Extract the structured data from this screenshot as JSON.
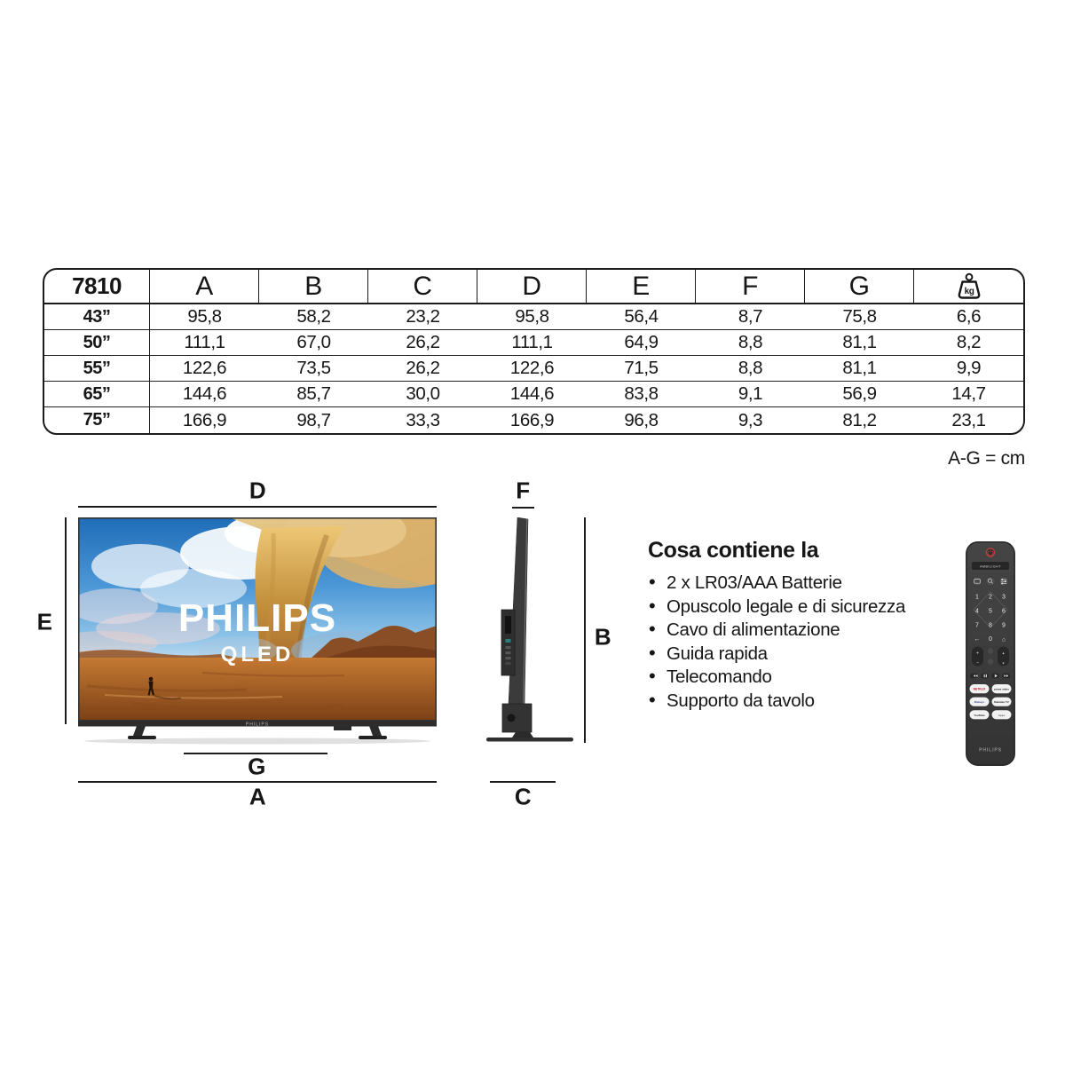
{
  "table": {
    "model": "7810",
    "columns": [
      "A",
      "B",
      "C",
      "D",
      "E",
      "F",
      "G"
    ],
    "weight_unit": "kg",
    "units_note": "A-G = cm",
    "rows": [
      {
        "size": "43”",
        "values": [
          "95,8",
          "58,2",
          "23,2",
          "95,8",
          "56,4",
          "8,7",
          "75,8",
          "6,6"
        ]
      },
      {
        "size": "50”",
        "values": [
          "111,1",
          "67,0",
          "26,2",
          "111,1",
          "64,9",
          "8,8",
          "81,1",
          "8,2"
        ]
      },
      {
        "size": "55”",
        "values": [
          "122,6",
          "73,5",
          "26,2",
          "122,6",
          "71,5",
          "8,8",
          "81,1",
          "9,9"
        ]
      },
      {
        "size": "65”",
        "values": [
          "144,6",
          "85,7",
          "30,0",
          "144,6",
          "83,8",
          "9,1",
          "56,9",
          "14,7"
        ]
      },
      {
        "size": "75”",
        "values": [
          "166,9",
          "98,7",
          "33,3",
          "166,9",
          "96,8",
          "9,3",
          "81,2",
          "23,1"
        ]
      }
    ]
  },
  "diagram": {
    "front": {
      "top": "D",
      "left": "E",
      "stand": "G",
      "width": "A"
    },
    "side": {
      "top": "F",
      "height": "B",
      "depth": "C"
    },
    "screen_brand": "PHILIPS",
    "screen_sub": "QLED",
    "bezel_brand": "PHILIPS"
  },
  "contents": {
    "heading": "Cosa contiene la",
    "items": [
      "2 x LR03/AAA Batterie",
      "Opuscolo legale e di sicurezza",
      "Cavo di alimentazione",
      "Guida rapida",
      "Telecomando",
      "Supporto da tavolo"
    ]
  },
  "remote": {
    "ambilight_label": "AMBILIGHT",
    "digits": [
      "1",
      "2",
      "3",
      "4",
      "5",
      "6",
      "7",
      "8",
      "9",
      "0"
    ],
    "apps": [
      {
        "label": "NETFLIX",
        "color": "#c9151e"
      },
      {
        "label": "prime video",
        "color": "#222222"
      },
      {
        "label": "Disney+",
        "color": "#2b3a7e"
      },
      {
        "label": "Rakuten TV",
        "color": "#222222"
      },
      {
        "label": "YouTube",
        "color": "#222222"
      },
      {
        "label": "Apps",
        "color": "#666666"
      }
    ],
    "brand": "PHILIPS"
  },
  "colors": {
    "line": "#1b1b1b",
    "tv_body": "#3b3b3b",
    "sky_blue": "#2f7fc9",
    "sand_orange": "#b5722e",
    "ground_orange": "#b0632a",
    "netflix_red": "#c9151e",
    "power_red": "#c2403a"
  }
}
